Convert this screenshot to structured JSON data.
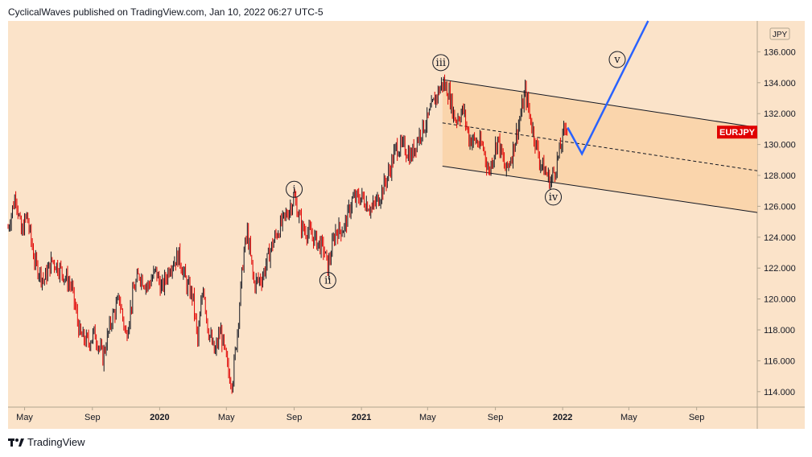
{
  "header": {
    "attribution": "CyclicalWaves published on TradingView.com, Jan 10, 2022 06:27 UTC-5"
  },
  "footer": {
    "brand": "TradingView"
  },
  "colors": {
    "background": "#fbe3c9",
    "channel_fill": "#fad3a9",
    "candle_bull": "#131722",
    "candle_bear": "#e00000",
    "projection": "#2962ff",
    "price_badge": "#e00000"
  },
  "icons": {
    "logo": "tradingview-logo-icon"
  },
  "chart_data": {
    "type": "candlestick",
    "symbol": "EURJPY",
    "unit_label": "JPY",
    "y_axis": {
      "range": [
        113.0,
        138.0
      ],
      "ticks": [
        "136.000",
        "134.000",
        "132.000",
        "130.000",
        "128.000",
        "126.000",
        "124.000",
        "122.000",
        "120.000",
        "118.000",
        "116.000",
        "114.000"
      ]
    },
    "x_axis": {
      "range": [
        "2019-04-01",
        "2022-12-20"
      ],
      "ticks": [
        {
          "label": "May",
          "date": "2019-05-01",
          "bold": false
        },
        {
          "label": "Sep",
          "date": "2019-09-01",
          "bold": false
        },
        {
          "label": "2020",
          "date": "2020-01-01",
          "bold": true
        },
        {
          "label": "May",
          "date": "2020-05-01",
          "bold": false
        },
        {
          "label": "Sep",
          "date": "2020-09-01",
          "bold": false
        },
        {
          "label": "2021",
          "date": "2021-01-01",
          "bold": true
        },
        {
          "label": "May",
          "date": "2021-05-01",
          "bold": false
        },
        {
          "label": "Sep",
          "date": "2021-09-01",
          "bold": false
        },
        {
          "label": "2022",
          "date": "2022-01-01",
          "bold": true
        },
        {
          "label": "May",
          "date": "2022-05-01",
          "bold": false
        },
        {
          "label": "Sep",
          "date": "2022-09-01",
          "bold": false
        }
      ]
    },
    "price_path": [
      [
        "2019-04-01",
        124.6
      ],
      [
        "2019-04-15",
        126.8
      ],
      [
        "2019-04-25",
        124.2
      ],
      [
        "2019-05-05",
        125.4
      ],
      [
        "2019-05-20",
        122.3
      ],
      [
        "2019-06-05",
        121.2
      ],
      [
        "2019-06-20",
        122.5
      ],
      [
        "2019-07-05",
        121.9
      ],
      [
        "2019-07-25",
        120.8
      ],
      [
        "2019-08-10",
        117.6
      ],
      [
        "2019-08-25",
        117.2
      ],
      [
        "2019-09-05",
        117.8
      ],
      [
        "2019-09-20",
        116.2
      ],
      [
        "2019-10-05",
        118.6
      ],
      [
        "2019-10-20",
        120.0
      ],
      [
        "2019-11-01",
        117.6
      ],
      [
        "2019-11-15",
        120.6
      ],
      [
        "2019-11-25",
        121.6
      ],
      [
        "2019-12-10",
        120.8
      ],
      [
        "2019-12-25",
        121.8
      ],
      [
        "2020-01-05",
        120.6
      ],
      [
        "2020-01-20",
        122.2
      ],
      [
        "2020-02-05",
        122.8
      ],
      [
        "2020-02-20",
        120.8
      ],
      [
        "2020-03-01",
        120.2
      ],
      [
        "2020-03-10",
        117.2
      ],
      [
        "2020-03-20",
        121.0
      ],
      [
        "2020-03-28",
        118.2
      ],
      [
        "2020-04-10",
        116.4
      ],
      [
        "2020-04-20",
        118.0
      ],
      [
        "2020-05-05",
        115.2
      ],
      [
        "2020-05-12",
        114.6
      ],
      [
        "2020-05-20",
        117.6
      ],
      [
        "2020-06-01",
        122.8
      ],
      [
        "2020-06-08",
        124.3
      ],
      [
        "2020-06-20",
        121.0
      ],
      [
        "2020-07-05",
        121.4
      ],
      [
        "2020-07-20",
        123.2
      ],
      [
        "2020-08-01",
        124.3
      ],
      [
        "2020-08-20",
        125.6
      ],
      [
        "2020-09-01",
        126.6
      ],
      [
        "2020-09-15",
        124.6
      ],
      [
        "2020-10-01",
        124.2
      ],
      [
        "2020-10-15",
        123.6
      ],
      [
        "2020-10-25",
        123.2
      ],
      [
        "2020-11-01",
        122.0
      ],
      [
        "2020-11-15",
        124.4
      ],
      [
        "2020-12-01",
        124.6
      ],
      [
        "2020-12-15",
        126.4
      ],
      [
        "2021-01-01",
        126.6
      ],
      [
        "2021-01-20",
        125.8
      ],
      [
        "2021-02-05",
        126.8
      ],
      [
        "2021-02-20",
        128.2
      ],
      [
        "2021-03-05",
        129.8
      ],
      [
        "2021-03-20",
        129.8
      ],
      [
        "2021-04-01",
        129.2
      ],
      [
        "2021-04-15",
        130.6
      ],
      [
        "2021-05-01",
        131.6
      ],
      [
        "2021-05-15",
        133.0
      ],
      [
        "2021-05-28",
        134.0
      ],
      [
        "2021-06-08",
        133.4
      ],
      [
        "2021-06-20",
        131.6
      ],
      [
        "2021-07-05",
        132.2
      ],
      [
        "2021-07-15",
        130.4
      ],
      [
        "2021-07-28",
        130.2
      ],
      [
        "2021-08-10",
        129.8
      ],
      [
        "2021-08-20",
        128.2
      ],
      [
        "2021-09-05",
        130.4
      ],
      [
        "2021-09-20",
        128.2
      ],
      [
        "2021-10-01",
        129.4
      ],
      [
        "2021-10-15",
        131.6
      ],
      [
        "2021-10-25",
        133.4
      ],
      [
        "2021-11-05",
        131.4
      ],
      [
        "2021-11-20",
        129.0
      ],
      [
        "2021-12-01",
        128.2
      ],
      [
        "2021-12-10",
        127.6
      ],
      [
        "2021-12-20",
        128.6
      ],
      [
        "2022-01-01",
        130.4
      ],
      [
        "2022-01-07",
        131.4
      ],
      [
        "2022-01-10",
        131.1
      ]
    ],
    "projection_path": [
      [
        "2022-01-10",
        131.1
      ],
      [
        "2022-02-05",
        129.4
      ],
      [
        "2022-06-05",
        138.0
      ]
    ],
    "channel": {
      "upper": [
        [
          "2021-05-28",
          134.2
        ],
        [
          "2022-12-20",
          131.1
        ]
      ],
      "lower": [
        [
          "2021-05-28",
          128.6
        ],
        [
          "2022-12-20",
          125.6
        ]
      ],
      "mid": [
        [
          "2021-05-28",
          131.4
        ],
        [
          "2022-12-20",
          128.3
        ]
      ]
    },
    "wave_labels": [
      {
        "label": "i",
        "date": "2020-09-01",
        "price": 127.1
      },
      {
        "label": "ii",
        "date": "2020-11-01",
        "price": 121.2
      },
      {
        "label": "iii",
        "date": "2021-05-25",
        "price": 135.3
      },
      {
        "label": "iv",
        "date": "2021-12-15",
        "price": 126.6
      },
      {
        "label": "v",
        "date": "2022-04-10",
        "price": 135.5
      }
    ],
    "last_price_badge": {
      "label": "EURJPY",
      "price": 130.8
    }
  }
}
